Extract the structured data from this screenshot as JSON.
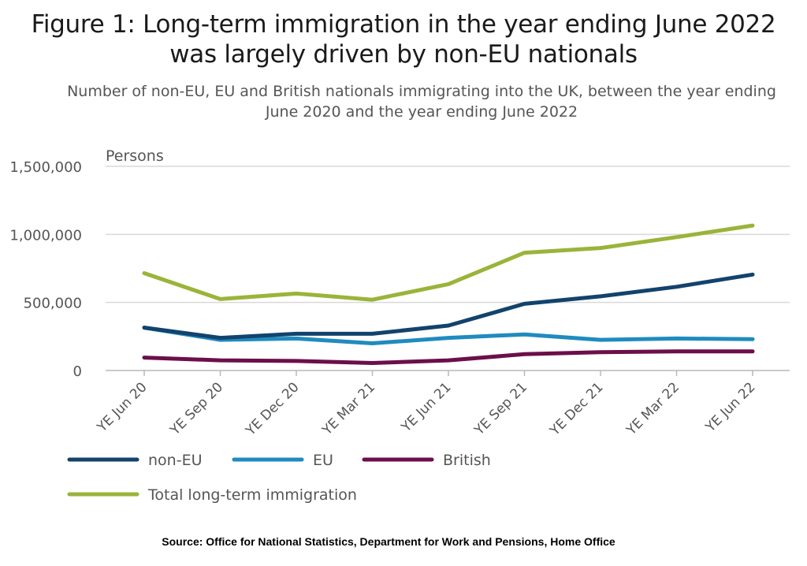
{
  "title_lines": [
    "Figure 1: Long-term immigration in the year ending June 2022",
    "was largely driven by non-EU nationals"
  ],
  "subtitle_lines": [
    "Number of non-EU, EU and British nationals immigrating into the UK, between the year ending",
    "June 2020 and the year ending June 2022"
  ],
  "source": "Source: Office for National Statistics, Department for Work and Pensions, Home Office",
  "chart_data": {
    "type": "line",
    "title": "Figure 1: Long-term immigration in the year ending June 2022 was largely driven by non-EU nationals",
    "ylabel": "Persons",
    "ylim": [
      0,
      1500000
    ],
    "yticks": [
      0,
      500000,
      1000000,
      1500000
    ],
    "ytick_labels": [
      "0",
      "500,000",
      "1,000,000",
      "1,500,000"
    ],
    "grid": true,
    "legend_position": "bottom",
    "categories": [
      "YE Jun 20",
      "YE Sep 20",
      "YE Dec 20",
      "YE Mar 21",
      "YE Jun 21",
      "YE Sep 21",
      "YE Dec 21",
      "YE Mar 22",
      "YE Jun 22"
    ],
    "series": [
      {
        "name": "non-EU",
        "color": "#12436d",
        "values": [
          315000,
          240000,
          270000,
          270000,
          330000,
          490000,
          545000,
          615000,
          705000
        ]
      },
      {
        "name": "EU",
        "color": "#1f8bbf",
        "values": [
          315000,
          225000,
          235000,
          200000,
          240000,
          265000,
          225000,
          235000,
          230000
        ]
      },
      {
        "name": "British",
        "color": "#6b0f4a",
        "values": [
          95000,
          75000,
          70000,
          55000,
          75000,
          120000,
          135000,
          140000,
          140000
        ]
      },
      {
        "name": "Total long-term immigration",
        "color": "#9ab43a",
        "values": [
          715000,
          525000,
          565000,
          520000,
          635000,
          865000,
          900000,
          980000,
          1065000
        ]
      }
    ]
  }
}
